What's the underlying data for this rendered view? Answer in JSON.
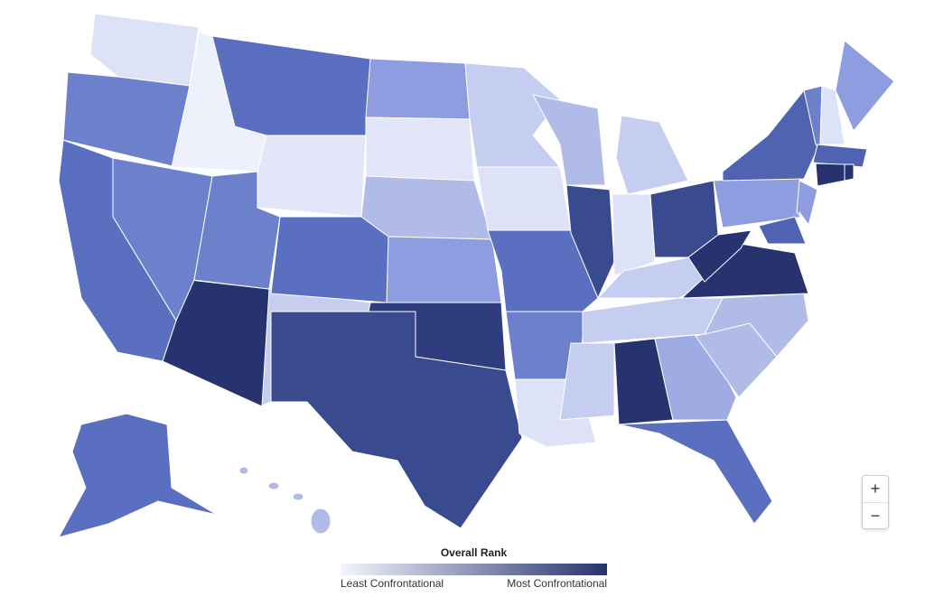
{
  "legend": {
    "title": "Overall Rank",
    "min_label": "Least Confrontational",
    "max_label": "Most Confrontational",
    "colors": [
      "#f4f5fd",
      "#26336e"
    ]
  },
  "zoom_controls": {
    "zoom_in": "+",
    "zoom_out": "−"
  }
}
